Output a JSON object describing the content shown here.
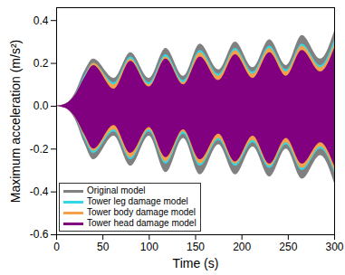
{
  "chart_data": {
    "type": "area",
    "x_label": "Time (s)",
    "y_label": "Maximum acceleration (m/s²)",
    "x": [
      0,
      10,
      20,
      30,
      40,
      62,
      80,
      100,
      118,
      137,
      155,
      175,
      193,
      212,
      230,
      248,
      265,
      285,
      300
    ],
    "xlim": [
      0,
      300
    ],
    "xticks": [
      0,
      50,
      100,
      150,
      200,
      250,
      300
    ],
    "ylim": [
      -0.6,
      0.46
    ],
    "yticks": [
      -0.6,
      -0.4,
      -0.2,
      {
        "value": 0,
        "label": "0.0"
      },
      0.2,
      0.4
    ],
    "grid": false,
    "legend": "lower left",
    "series": [
      {
        "name": "Original model",
        "color": "#808080",
        "values": [
          0,
          0.01,
          0.06,
          0.16,
          0.22,
          0.13,
          0.25,
          0.13,
          0.27,
          0.14,
          0.29,
          0.17,
          0.3,
          0.18,
          0.31,
          0.19,
          0.33,
          0.22,
          0.35
        ],
        "lower": [
          0,
          -0.01,
          -0.06,
          -0.17,
          -0.25,
          -0.14,
          -0.28,
          -0.14,
          -0.31,
          -0.15,
          -0.32,
          -0.18,
          -0.32,
          -0.19,
          -0.33,
          -0.2,
          -0.34,
          -0.23,
          -0.36
        ]
      },
      {
        "name": "Tower leg damage model",
        "color": "#33d6e6",
        "values": [
          0,
          0.01,
          0.05,
          0.14,
          0.2,
          0.11,
          0.23,
          0.11,
          0.24,
          0.12,
          0.26,
          0.15,
          0.27,
          0.16,
          0.28,
          0.17,
          0.29,
          0.19,
          0.31
        ],
        "lower": [
          0,
          -0.01,
          -0.05,
          -0.15,
          -0.22,
          -0.12,
          -0.25,
          -0.12,
          -0.27,
          -0.13,
          -0.28,
          -0.16,
          -0.28,
          -0.17,
          -0.29,
          -0.18,
          -0.3,
          -0.2,
          -0.31
        ]
      },
      {
        "name": "Tower body damage model",
        "color": "#f5a04a",
        "values": [
          0,
          0.01,
          0.05,
          0.13,
          0.2,
          0.1,
          0.22,
          0.1,
          0.23,
          0.11,
          0.25,
          0.14,
          0.26,
          0.15,
          0.27,
          0.16,
          0.28,
          0.18,
          0.29
        ],
        "lower": [
          0,
          -0.01,
          -0.05,
          -0.14,
          -0.21,
          -0.11,
          -0.24,
          -0.11,
          -0.26,
          -0.12,
          -0.27,
          -0.15,
          -0.27,
          -0.16,
          -0.28,
          -0.17,
          -0.29,
          -0.19,
          -0.3
        ]
      },
      {
        "name": "Tower head damage model",
        "color": "#800080",
        "values": [
          0,
          0.01,
          0.05,
          0.13,
          0.19,
          0.08,
          0.21,
          0.09,
          0.22,
          0.1,
          0.23,
          0.12,
          0.24,
          0.13,
          0.25,
          0.14,
          0.26,
          0.16,
          0.27
        ],
        "lower": [
          0,
          -0.01,
          -0.05,
          -0.13,
          -0.2,
          -0.09,
          -0.22,
          -0.1,
          -0.24,
          -0.11,
          -0.25,
          -0.13,
          -0.26,
          -0.14,
          -0.27,
          -0.15,
          -0.27,
          -0.17,
          -0.28
        ]
      }
    ]
  }
}
